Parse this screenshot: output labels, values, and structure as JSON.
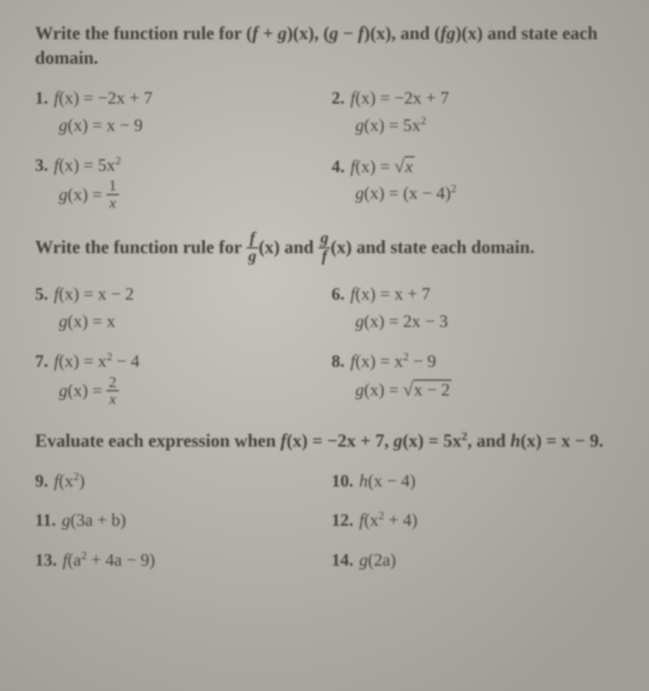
{
  "section1": {
    "instruction_prefix": "Write the function rule for (",
    "instruction_mid1": " + ",
    "instruction_mid2": ")(x), (",
    "instruction_mid3": " − ",
    "instruction_mid4": ")(x), and (",
    "instruction_mid5": ")(x) and state each domain.",
    "f": "f",
    "g": "g",
    "fg": "fg",
    "problems": {
      "p1": {
        "num": "1.",
        "line1a": "f",
        "line1b": "(x) = −2x + 7",
        "line2a": "g",
        "line2b": "(x) = x − 9"
      },
      "p2": {
        "num": "2.",
        "line1a": "f",
        "line1b": "(x) = −2x + 7",
        "line2a": "g",
        "line2b": "(x) = 5x",
        "line2exp": "2"
      },
      "p3": {
        "num": "3.",
        "line1a": "f",
        "line1b": "(x) = 5x",
        "line1exp": "2",
        "line2a": "g",
        "line2b": "(x) = ",
        "frac_n": "1",
        "frac_d": "x"
      },
      "p4": {
        "num": "4.",
        "line1a": "f",
        "line1b": "(x) = ",
        "rad": "x",
        "line2a": "g",
        "line2b": "(x) = (x − 4)",
        "line2exp": "2"
      }
    }
  },
  "section2": {
    "instruction_a": "Write the function rule for ",
    "instruction_b": "(x) and ",
    "instruction_c": "(x) and state each domain.",
    "frac1_n": "f",
    "frac1_d": "g",
    "frac2_n": "g",
    "frac2_d": "f",
    "problems": {
      "p5": {
        "num": "5.",
        "line1a": "f",
        "line1b": "(x) = x − 2",
        "line2a": "g",
        "line2b": "(x) = x"
      },
      "p6": {
        "num": "6.",
        "line1a": "f",
        "line1b": "(x) = x + 7",
        "line2a": "g",
        "line2b": "(x) = 2x − 3"
      },
      "p7": {
        "num": "7.",
        "line1a": "f",
        "line1b": "(x) = x",
        "line1exp": "2",
        "line1c": " − 4",
        "line2a": "g",
        "line2b": "(x) = ",
        "frac_n": "2",
        "frac_d": "x"
      },
      "p8": {
        "num": "8.",
        "line1a": "f",
        "line1b": "(x) = x",
        "line1exp": "2",
        "line1c": " − 9",
        "line2a": "g",
        "line2b": "(x) = ",
        "rad": "x − 2"
      }
    }
  },
  "section3": {
    "instruction_a": "Evaluate each expression when ",
    "instruction_b": "f",
    "instruction_c": "(x) = −2x + 7, ",
    "instruction_d": "g",
    "instruction_e": "(x) = 5x",
    "instruction_exp": "2",
    "instruction_f": ", and ",
    "instruction_g": "h",
    "instruction_h": "(x) = x − 9.",
    "problems": {
      "p9": {
        "num": "9.",
        "fn": "f",
        "arg_a": "(x",
        "arg_exp": "2",
        "arg_b": ")"
      },
      "p10": {
        "num": "10.",
        "fn": "h",
        "arg": "(x − 4)"
      },
      "p11": {
        "num": "11.",
        "fn": "g",
        "arg": "(3a + b)"
      },
      "p12": {
        "num": "12.",
        "fn": "f",
        "arg_a": "(x",
        "arg_exp": "2",
        "arg_b": " + 4)"
      },
      "p13": {
        "num": "13.",
        "fn": "f",
        "arg_a": "(a",
        "arg_exp": "2",
        "arg_b": " + 4a − 9)"
      },
      "p14": {
        "num": "14.",
        "fn": "g",
        "arg": "(2a)"
      }
    }
  }
}
